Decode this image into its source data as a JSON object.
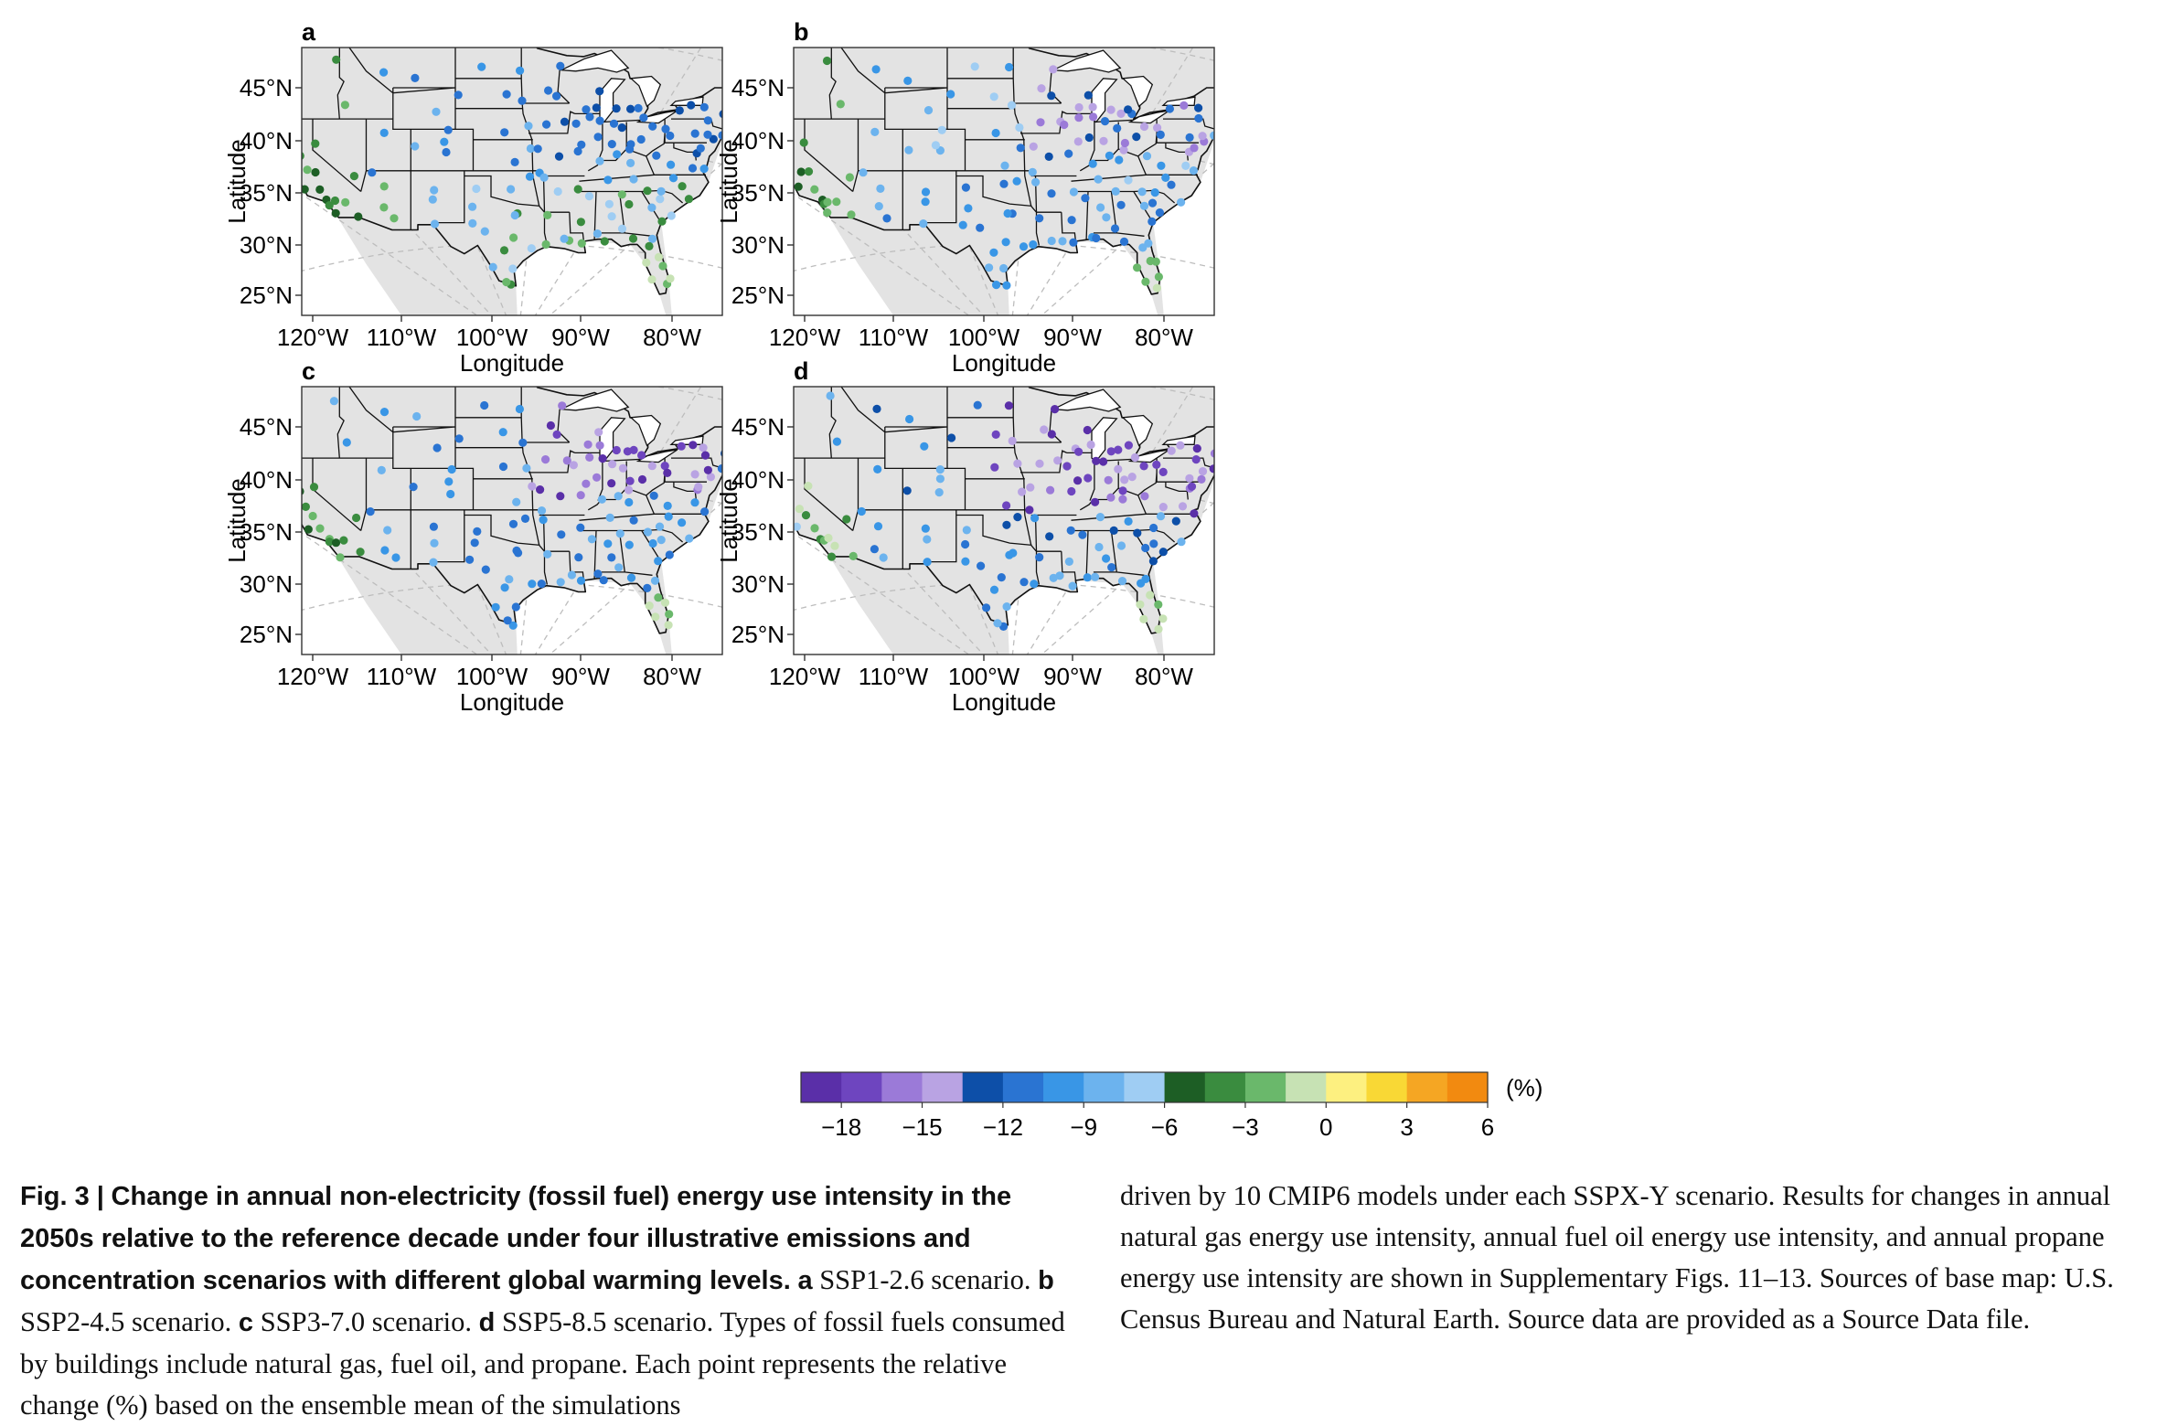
{
  "figure": {
    "panels": [
      {
        "id": "a",
        "label": "a"
      },
      {
        "id": "b",
        "label": "b"
      },
      {
        "id": "c",
        "label": "c"
      },
      {
        "id": "d",
        "label": "d"
      }
    ],
    "xlabel": "Longitude",
    "ylabel": "Latitude",
    "xticks": [
      "120°W",
      "110°W",
      "100°W",
      "90°W",
      "80°W"
    ],
    "yticks": [
      "45°N",
      "40°N",
      "35°N",
      "30°N",
      "25°N"
    ],
    "map_background": "#e3e3e3",
    "border_color": "#111111"
  },
  "colorbar": {
    "unit": "(%)",
    "ticks": [
      "−18",
      "−15",
      "−12",
      "−9",
      "−6",
      "−3",
      "0",
      "3",
      "6"
    ],
    "colors": [
      "#5a2fa8",
      "#6e45bf",
      "#9b7ad8",
      "#b9a3e3",
      "#0d4fa8",
      "#2a74d2",
      "#3996e6",
      "#6cb3ee",
      "#9fcdf3",
      "#1d5e25",
      "#3a8c3f",
      "#6ab86b",
      "#c7e2b4",
      "#fdf080",
      "#f9d835",
      "#f5a623",
      "#f28a10"
    ]
  },
  "caption": {
    "fig_label": "Fig. 3 |",
    "title": "Change in annual non-electricity (fossil fuel) energy use intensity in the 2050s relative to the reference decade under four illustrative emissions and concentration scenarios with different global warming levels.",
    "a_key": "a",
    "a_text": "SSP1-2.6 scenario.",
    "b_key": "b",
    "b_text": "SSP2-4.5 scenario.",
    "c_key": "c",
    "c_text": "SSP3-7.0 scenario.",
    "d_key": "d",
    "d_text": "SSP5-8.5 scenario.",
    "body_left": "Types of fossil fuels consumed by buildings include natural gas, fuel oil, and propane. Each point represents the relative change (%) based on the ensemble mean of the simulations",
    "body_right": "driven by 10 CMIP6 models under each SSPX-Y scenario. Results for changes in annual natural gas energy use intensity, annual fuel oil energy use intensity, and annual propane energy use intensity are shown in Supplementary Figs. 11–13. Sources of base map: U.S. Census Bureau and Natural Earth. Source data are provided as a Source Data file."
  }
}
